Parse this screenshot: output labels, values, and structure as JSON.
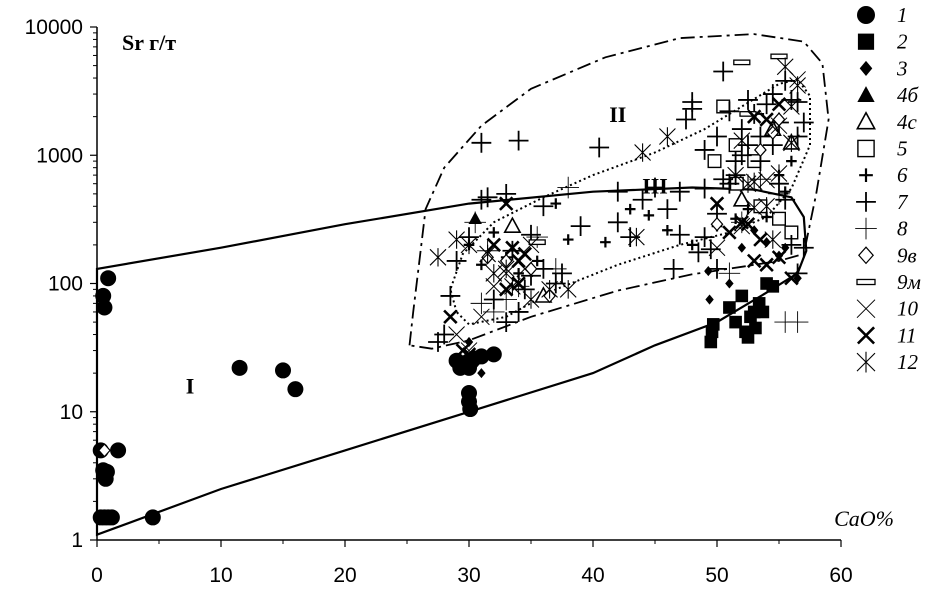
{
  "chart_data": {
    "type": "scatter",
    "title": "",
    "ylabel": "Sr г/т",
    "xlabel": "CaO%",
    "x_ticks": [
      "0",
      "10",
      "20",
      "30",
      "40",
      "50",
      "60"
    ],
    "y_ticks": [
      "1",
      "10",
      "100",
      "1000",
      "10000"
    ],
    "xlim": [
      0,
      60
    ],
    "ylim": [
      1,
      10000
    ],
    "y_scale": "log",
    "grid": false,
    "legend_position": "right",
    "region_labels": [
      {
        "text": "I",
        "x": 7.5,
        "y": 16
      },
      {
        "text": "II",
        "x": 42,
        "y": 2100
      },
      {
        "text": "III",
        "x": 45,
        "y": 580
      }
    ],
    "series": [
      {
        "name": "1",
        "marker": "circle-filled",
        "points": [
          [
            0.3,
            1.5
          ],
          [
            0.6,
            1.5
          ],
          [
            0.9,
            1.5
          ],
          [
            1.2,
            1.5
          ],
          [
            4.5,
            1.5
          ],
          [
            0.3,
            5
          ],
          [
            1.7,
            5
          ],
          [
            0.5,
            3.5
          ],
          [
            0.7,
            3
          ],
          [
            0.8,
            3.4
          ],
          [
            0.5,
            80
          ],
          [
            0.6,
            65
          ],
          [
            0.9,
            110
          ],
          [
            11.5,
            22
          ],
          [
            15,
            21
          ],
          [
            16,
            15
          ],
          [
            29,
            25
          ],
          [
            29.3,
            22
          ],
          [
            29.7,
            24
          ],
          [
            30,
            22
          ],
          [
            30.4,
            26
          ],
          [
            31,
            27
          ],
          [
            32,
            28
          ],
          [
            30,
            14
          ],
          [
            30,
            12
          ],
          [
            30.1,
            10.5
          ]
        ]
      },
      {
        "name": "2",
        "marker": "square-filled",
        "points": [
          [
            49.5,
            35
          ],
          [
            49.6,
            42
          ],
          [
            49.7,
            48
          ],
          [
            51,
            65
          ],
          [
            51.5,
            50
          ],
          [
            52,
            80
          ],
          [
            52.3,
            42
          ],
          [
            52.7,
            55
          ],
          [
            53.1,
            45
          ],
          [
            53.4,
            70
          ],
          [
            53.7,
            60
          ],
          [
            54,
            100
          ],
          [
            54.5,
            95
          ],
          [
            52.5,
            38
          ],
          [
            53,
            60
          ]
        ]
      },
      {
        "name": "3",
        "marker": "diamond-filled",
        "points": [
          [
            31,
            20
          ],
          [
            30.6,
            24
          ],
          [
            49.3,
            125
          ],
          [
            49.4,
            75
          ],
          [
            52,
            190
          ],
          [
            53,
            260
          ],
          [
            54,
            210
          ],
          [
            55,
            165
          ],
          [
            55.5,
            190
          ],
          [
            56.5,
            110
          ],
          [
            30,
            35
          ],
          [
            51,
            100
          ]
        ]
      },
      {
        "name": "4б",
        "marker": "triangle-filled",
        "points": [
          [
            30.5,
            320
          ],
          [
            53.5,
            400
          ]
        ]
      },
      {
        "name": "4с",
        "marker": "triangle-open",
        "points": [
          [
            33.5,
            280
          ],
          [
            36,
            80
          ],
          [
            52,
            450
          ],
          [
            54.5,
            1600
          ],
          [
            56,
            1250
          ]
        ]
      },
      {
        "name": "5",
        "marker": "square-open",
        "points": [
          [
            50.5,
            2400
          ],
          [
            51.5,
            1200
          ],
          [
            53,
            900
          ],
          [
            53.5,
            400
          ],
          [
            55,
            320
          ],
          [
            56,
            250
          ],
          [
            51.6,
            600
          ],
          [
            49.8,
            900
          ]
        ]
      },
      {
        "name": "6",
        "marker": "plus-small",
        "points": [
          [
            30,
            200
          ],
          [
            31,
            140
          ],
          [
            31.5,
            160
          ],
          [
            32,
            250
          ],
          [
            33,
            160
          ],
          [
            34,
            120
          ],
          [
            35.5,
            150
          ],
          [
            37,
            420
          ],
          [
            38,
            220
          ],
          [
            41,
            210
          ],
          [
            43,
            380
          ],
          [
            44.5,
            340
          ],
          [
            46,
            260
          ],
          [
            48,
            200
          ],
          [
            50,
            280
          ],
          [
            51.5,
            320
          ],
          [
            52.5,
            380
          ],
          [
            54,
            330
          ],
          [
            55,
            700
          ],
          [
            55.5,
            520
          ],
          [
            56,
            900
          ]
        ]
      },
      {
        "name": "7",
        "marker": "plus-large",
        "points": [
          [
            31,
            1250
          ],
          [
            34,
            1300
          ],
          [
            31,
            450
          ],
          [
            33,
            500
          ],
          [
            36,
            400
          ],
          [
            40.5,
            1150
          ],
          [
            44,
            450
          ],
          [
            45,
            560
          ],
          [
            46,
            380
          ],
          [
            47,
            520
          ],
          [
            48,
            2300
          ],
          [
            49,
            1100
          ],
          [
            50,
            1400
          ],
          [
            50.5,
            650
          ],
          [
            51,
            2200
          ],
          [
            52,
            1600
          ],
          [
            52.5,
            2700
          ],
          [
            53,
            2100
          ],
          [
            54,
            2500
          ],
          [
            54.5,
            3000
          ],
          [
            55,
            1800
          ],
          [
            55.5,
            3800
          ],
          [
            56,
            2700
          ],
          [
            56.5,
            2600
          ],
          [
            57,
            1800
          ],
          [
            53.5,
            1400
          ],
          [
            52,
            1000
          ],
          [
            51,
            600
          ],
          [
            50,
            350
          ],
          [
            49,
            230
          ],
          [
            50,
            130
          ],
          [
            49.5,
            185
          ],
          [
            48.5,
            175
          ],
          [
            47,
            240
          ],
          [
            46.5,
            130
          ],
          [
            42,
            300
          ],
          [
            43,
            230
          ],
          [
            39,
            280
          ],
          [
            37,
            100
          ],
          [
            36,
            130
          ],
          [
            35,
            115
          ],
          [
            34.5,
            90
          ],
          [
            34,
            60
          ],
          [
            33,
            50
          ],
          [
            32,
            75
          ],
          [
            30,
            230
          ],
          [
            29,
            150
          ],
          [
            28.5,
            80
          ],
          [
            28,
            40
          ],
          [
            27.5,
            35
          ],
          [
            31.5,
            470
          ],
          [
            33.5,
            180
          ],
          [
            35,
            240
          ],
          [
            37.5,
            120
          ],
          [
            42,
            520
          ],
          [
            47.5,
            1900
          ],
          [
            48,
            2600
          ],
          [
            50.5,
            4500
          ],
          [
            51.5,
            700
          ],
          [
            52.5,
            1200
          ],
          [
            53.5,
            900
          ],
          [
            55,
            600
          ],
          [
            55.5,
            450
          ],
          [
            56,
            200
          ],
          [
            56.5,
            120
          ],
          [
            57,
            190
          ],
          [
            54.5,
            1200
          ],
          [
            56.5,
            1400
          ],
          [
            51.5,
            900
          ],
          [
            49,
            550
          ]
        ]
      },
      {
        "name": "8",
        "marker": "plus-thin",
        "points": [
          [
            31,
            70
          ],
          [
            32,
            60
          ],
          [
            33,
            75
          ],
          [
            34,
            95
          ],
          [
            35.5,
            230
          ],
          [
            37,
            130
          ],
          [
            38,
            560
          ],
          [
            51,
            120
          ],
          [
            52,
            300
          ],
          [
            53.5,
            650
          ],
          [
            55,
            500
          ],
          [
            56.5,
            50
          ],
          [
            55.5,
            50
          ],
          [
            31.5,
            180
          ],
          [
            30.5,
            300
          ]
        ]
      },
      {
        "name": "9в",
        "marker": "diamond-open",
        "points": [
          [
            0.6,
            5
          ],
          [
            31.5,
            160
          ],
          [
            33,
            150
          ],
          [
            35,
            130
          ],
          [
            36.5,
            80
          ],
          [
            50,
            290
          ],
          [
            53.5,
            1100
          ],
          [
            54.5,
            1500
          ],
          [
            55,
            1900
          ]
        ]
      },
      {
        "name": "9м",
        "marker": "dash-rect",
        "points": [
          [
            35.5,
            210
          ],
          [
            52,
            5300
          ],
          [
            55,
            5900
          ],
          [
            52.5,
            2100
          ]
        ]
      },
      {
        "name": "10",
        "marker": "x-thin",
        "points": [
          [
            29,
            40
          ],
          [
            30,
            30
          ],
          [
            31,
            55
          ],
          [
            32,
            95
          ],
          [
            33,
            120
          ],
          [
            34.5,
            130
          ],
          [
            35,
            200
          ],
          [
            50,
            190
          ],
          [
            52,
            280
          ],
          [
            53,
            390
          ],
          [
            54,
            640
          ],
          [
            55,
            1700
          ],
          [
            56,
            2400
          ],
          [
            56.5,
            3900
          ]
        ]
      },
      {
        "name": "11",
        "marker": "x-bold",
        "points": [
          [
            28.5,
            55
          ],
          [
            29.5,
            30
          ],
          [
            30,
            28
          ],
          [
            33,
            420
          ],
          [
            32,
            200
          ],
          [
            33.5,
            190
          ],
          [
            34,
            150
          ],
          [
            34.5,
            170
          ],
          [
            33,
            90
          ],
          [
            34,
            100
          ],
          [
            50,
            420
          ],
          [
            51,
            250
          ],
          [
            52,
            300
          ],
          [
            52.5,
            290
          ],
          [
            53.5,
            220
          ],
          [
            53,
            150
          ],
          [
            54,
            140
          ],
          [
            55,
            160
          ],
          [
            56,
            110
          ],
          [
            53,
            2000
          ],
          [
            54,
            1900
          ],
          [
            55,
            2500
          ]
        ]
      },
      {
        "name": "12",
        "marker": "asterisk",
        "points": [
          [
            27.5,
            160
          ],
          [
            29,
            220
          ],
          [
            30,
            200
          ],
          [
            31.5,
            170
          ],
          [
            32,
            120
          ],
          [
            33,
            130
          ],
          [
            33.5,
            95
          ],
          [
            35,
            75
          ],
          [
            36.5,
            90
          ],
          [
            38,
            90
          ],
          [
            43.5,
            230
          ],
          [
            44,
            1050
          ],
          [
            46,
            1400
          ],
          [
            51.5,
            700
          ],
          [
            52.5,
            600
          ],
          [
            53,
            620
          ],
          [
            54,
            400
          ],
          [
            54.5,
            220
          ],
          [
            55,
            720
          ],
          [
            55.5,
            4900
          ],
          [
            56.5,
            3500
          ],
          [
            56,
            1250
          ],
          [
            52,
            1300
          ]
        ]
      }
    ]
  }
}
